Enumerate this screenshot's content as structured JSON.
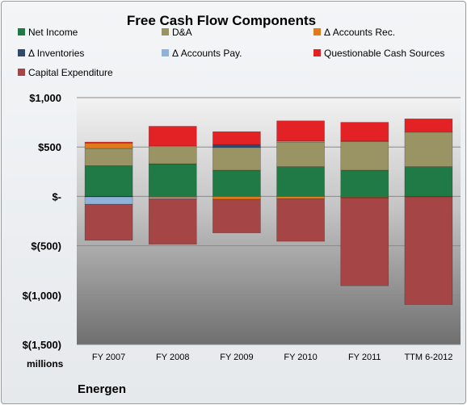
{
  "chart_data": {
    "type": "bar",
    "stacked": true,
    "title": "Free Cash Flow Components",
    "company": "Energen",
    "units_label": "millions",
    "categories": [
      "FY 2007",
      "FY 2008",
      "FY 2009",
      "FY 2010",
      "FY 2011",
      "TTM 6-2012"
    ],
    "ylim": [
      -1500,
      1000
    ],
    "yticks": [
      1000,
      500,
      0,
      -500,
      -1000,
      -1500
    ],
    "ytick_labels": [
      "$1,000",
      "$500",
      "$-",
      "$(500)",
      "$(1,000)",
      "$(1,500)"
    ],
    "grid": true,
    "legend_position": "top",
    "series": [
      {
        "name": "Net Income",
        "color": "#1f7a45",
        "values": [
          310,
          330,
          265,
          300,
          265,
          300
        ]
      },
      {
        "name": "D&A",
        "color": "#9a9464",
        "values": [
          175,
          180,
          230,
          250,
          290,
          350
        ]
      },
      {
        "name": "Δ Accounts Rec.",
        "color": "#e07a1a",
        "values": [
          55,
          -10,
          -30,
          -25,
          -10,
          -5
        ]
      },
      {
        "name": "Δ Inventories",
        "color": "#2f4a6e",
        "values": [
          -5,
          0,
          30,
          0,
          -5,
          0
        ]
      },
      {
        "name": "Δ Accounts Pay.",
        "color": "#8fb2d8",
        "values": [
          -75,
          -15,
          -5,
          10,
          5,
          5
        ]
      },
      {
        "name": "Questionable Cash Sources",
        "color": "#e32226",
        "values": [
          10,
          200,
          130,
          205,
          190,
          130
        ]
      },
      {
        "name": "Capital Expenditure",
        "color": "#a64545",
        "values": [
          -365,
          -460,
          -335,
          -430,
          -890,
          -1090
        ]
      }
    ]
  }
}
